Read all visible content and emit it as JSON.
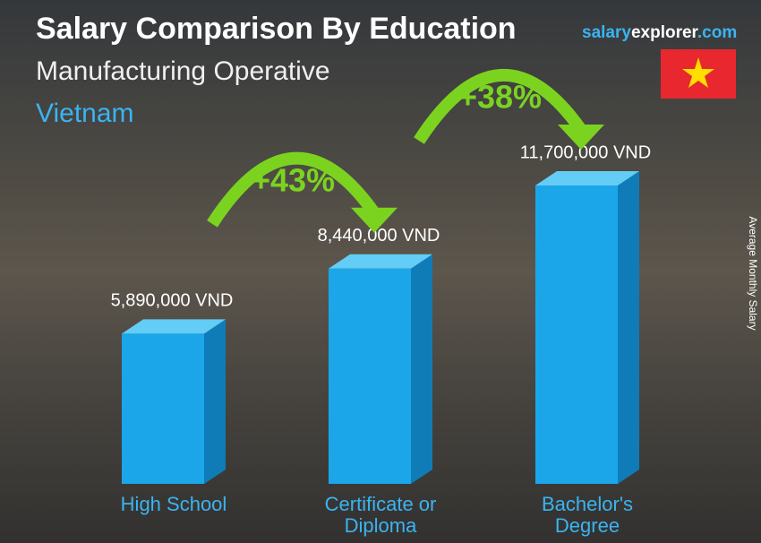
{
  "chart_data": {
    "type": "bar",
    "title": "Salary Comparison By Education",
    "subtitle": "Manufacturing Operative",
    "country": "Vietnam",
    "brand": [
      "salary",
      "explorer",
      ".com"
    ],
    "y_label": "Average Monthly Salary",
    "categories": [
      "High School",
      "Certificate or Diploma",
      "Bachelor's Degree"
    ],
    "values": [
      5890000,
      8440000,
      11700000
    ],
    "value_labels": [
      "5,890,000 VND",
      "8,440,000 VND",
      "11,700,000 VND"
    ],
    "annotations": [
      "+43%",
      "+38%"
    ],
    "color": "#1ba6ea"
  }
}
